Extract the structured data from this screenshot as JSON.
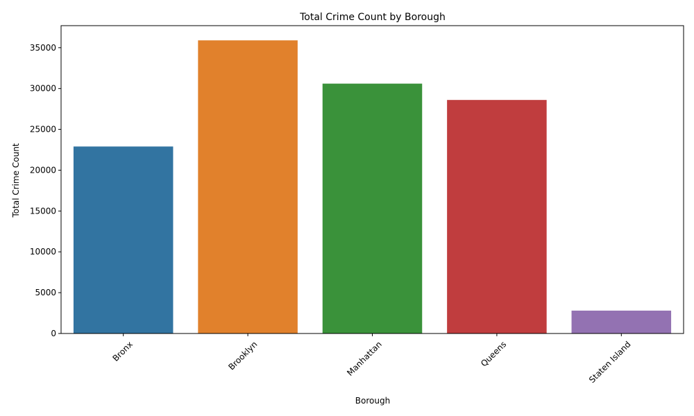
{
  "chart_data": {
    "type": "bar",
    "title": "Total Crime Count by Borough",
    "xlabel": "Borough",
    "ylabel": "Total Crime Count",
    "categories": [
      "Bronx",
      "Brooklyn",
      "Manhattan",
      "Queens",
      "Staten Island"
    ],
    "values": [
      22900,
      35900,
      30600,
      28600,
      2800
    ],
    "colors": [
      "#3274a1",
      "#e1812c",
      "#3a923a",
      "#c03d3e",
      "#9372b2"
    ],
    "ylim": [
      0,
      37700
    ],
    "yticks": [
      0,
      5000,
      10000,
      15000,
      20000,
      25000,
      30000,
      35000
    ],
    "xtick_rotation": 45,
    "grid": false,
    "legend": "none"
  }
}
